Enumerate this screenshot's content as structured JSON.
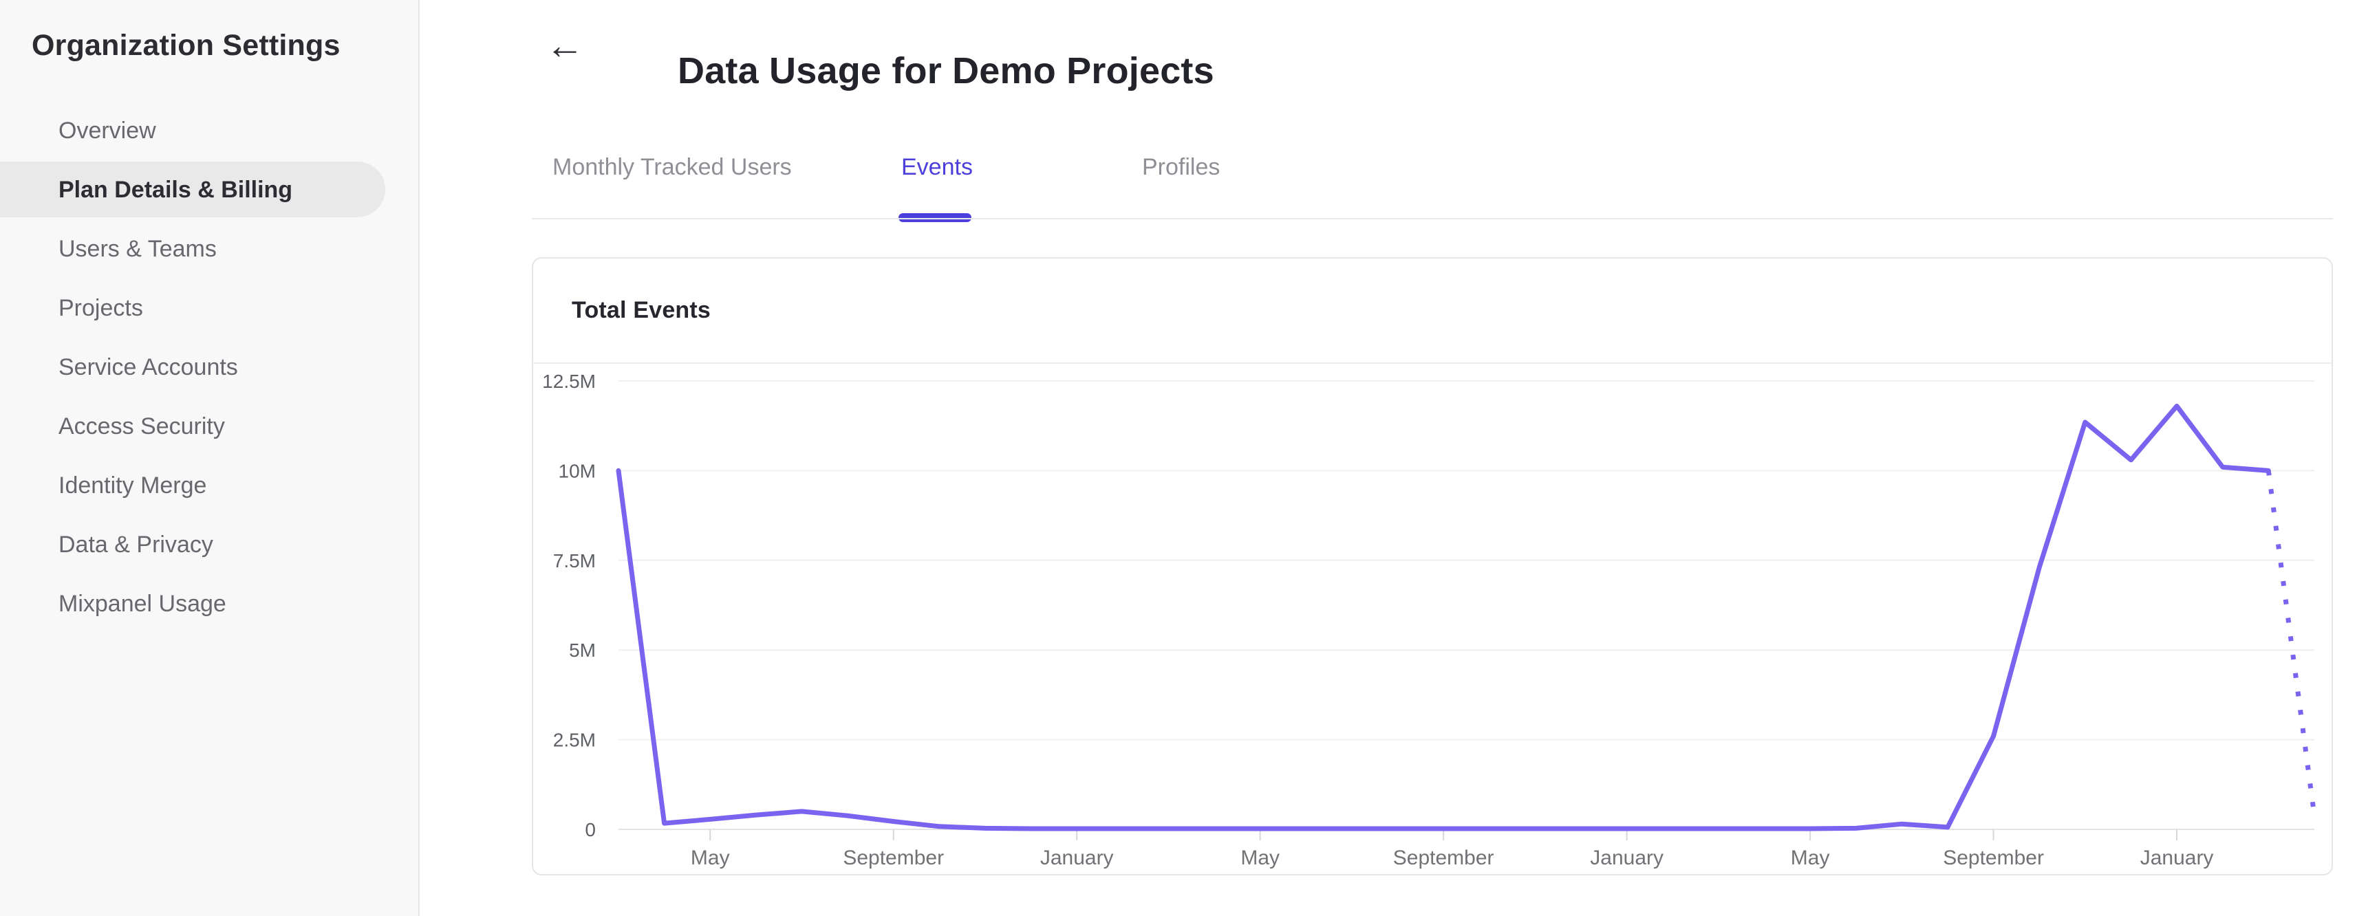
{
  "sidebar": {
    "title": "Organization Settings",
    "items": [
      {
        "label": "Overview",
        "selected": false
      },
      {
        "label": "Plan Details & Billing",
        "selected": true
      },
      {
        "label": "Users & Teams",
        "selected": false
      },
      {
        "label": "Projects",
        "selected": false
      },
      {
        "label": "Service Accounts",
        "selected": false
      },
      {
        "label": "Access Security",
        "selected": false
      },
      {
        "label": "Identity Merge",
        "selected": false
      },
      {
        "label": "Data & Privacy",
        "selected": false
      },
      {
        "label": "Mixpanel Usage",
        "selected": false
      }
    ]
  },
  "header": {
    "back_icon": "←",
    "title": "Data Usage for Demo Projects"
  },
  "tabs": [
    {
      "label": "Monthly Tracked Users",
      "active": false
    },
    {
      "label": "Events",
      "active": true
    },
    {
      "label": "Profiles",
      "active": false
    }
  ],
  "card": {
    "title": "Total Events"
  },
  "colors": {
    "accent_tab": "#4d3fdb",
    "line": "#7b63f0",
    "sidebar_bg": "#f8f8f9",
    "pill_bg": "#e9e9ea",
    "card_border": "#e6e6e9",
    "grid": "#efeff2",
    "axis_line": "#e3e3e6",
    "tick_mark": "#d7d7db",
    "text_dark": "#26262e",
    "sidebar_text": "#67676d",
    "tab_inactive": "#8f8f96",
    "y_label": "#5d6065",
    "x_label": "#717176"
  },
  "chart_data": {
    "type": "line",
    "title": "Total Events",
    "series_name": "Total Events",
    "legend": "none",
    "grid": "horizontal only",
    "ylim_millions": [
      0,
      12.5
    ],
    "y_ticks": [
      {
        "label": "0",
        "value_millions": 0
      },
      {
        "label": "2.5M",
        "value_millions": 2.5
      },
      {
        "label": "5M",
        "value_millions": 5
      },
      {
        "label": "7.5M",
        "value_millions": 7.5
      },
      {
        "label": "10M",
        "value_millions": 10
      },
      {
        "label": "12.5M",
        "value_millions": 12.5
      }
    ],
    "x_ticks": [
      {
        "label": "May",
        "month_index": 2
      },
      {
        "label": "September",
        "month_index": 6
      },
      {
        "label": "January",
        "month_index": 10
      },
      {
        "label": "May",
        "month_index": 14
      },
      {
        "label": "September",
        "month_index": 18
      },
      {
        "label": "January",
        "month_index": 22
      },
      {
        "label": "May",
        "month_index": 26
      },
      {
        "label": "September",
        "month_index": 30
      },
      {
        "label": "January",
        "month_index": 34
      }
    ],
    "values_millions": [
      10.0,
      0.17,
      0.28,
      0.4,
      0.5,
      0.38,
      0.22,
      0.08,
      0.03,
      0.02,
      0.02,
      0.02,
      0.02,
      0.02,
      0.02,
      0.02,
      0.02,
      0.02,
      0.02,
      0.02,
      0.02,
      0.02,
      0.02,
      0.02,
      0.02,
      0.02,
      0.02,
      0.03,
      0.15,
      0.06,
      2.6,
      7.3,
      11.35,
      10.3,
      11.8,
      10.1,
      10.0,
      0.4
    ],
    "solid_until_index": 36,
    "final_segment_style": "dotted (incomplete / projected month)"
  }
}
